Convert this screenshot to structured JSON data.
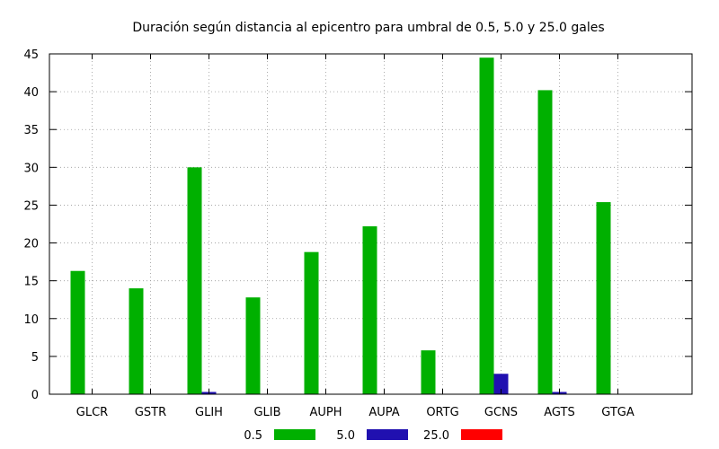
{
  "chart_data": {
    "type": "bar",
    "title": "Duración según distancia al epicentro para umbral de 0.5, 5.0 y 25.0 gales",
    "xlabel": "",
    "ylabel": "",
    "ylim": [
      0,
      45
    ],
    "yticks": [
      0,
      5,
      10,
      15,
      20,
      25,
      30,
      35,
      40,
      45
    ],
    "grid": true,
    "legend_position": "bottom",
    "categories": [
      "GLCR",
      "GSTR",
      "GLIH",
      "GLIB",
      "AUPH",
      "AUPA",
      "ORTG",
      "GCNS",
      "AGTS",
      "GTGA"
    ],
    "series": [
      {
        "name": "0.5",
        "color": "#00b000",
        "values": [
          16.3,
          14.0,
          30.0,
          12.8,
          18.8,
          22.2,
          5.8,
          44.5,
          40.2,
          25.4
        ]
      },
      {
        "name": "5.0",
        "color": "#2010b0",
        "values": [
          0,
          0,
          0.3,
          0,
          0,
          0,
          0,
          2.7,
          0.3,
          0
        ]
      },
      {
        "name": "25.0",
        "color": "#ff0000",
        "values": [
          0,
          0,
          0,
          0,
          0,
          0,
          0,
          0,
          0,
          0
        ]
      }
    ]
  }
}
